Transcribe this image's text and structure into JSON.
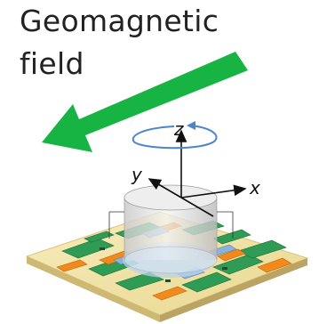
{
  "title": {
    "line1": "Geomagnetic",
    "line2": "field"
  },
  "axes": {
    "x": "x",
    "y": "y",
    "z": "z"
  },
  "colors": {
    "field_arrow": "#17b444",
    "board": "#f3e4a6",
    "traces_green": "#2f9b55",
    "traces_orange": "#f08a1c",
    "sensor_blue": "#8db2d8",
    "cylinder": "#e6e6e6",
    "rotation_arrow": "#4a86c8"
  },
  "icons": [
    "field-arrow-icon",
    "rotation-arrow-icon"
  ]
}
